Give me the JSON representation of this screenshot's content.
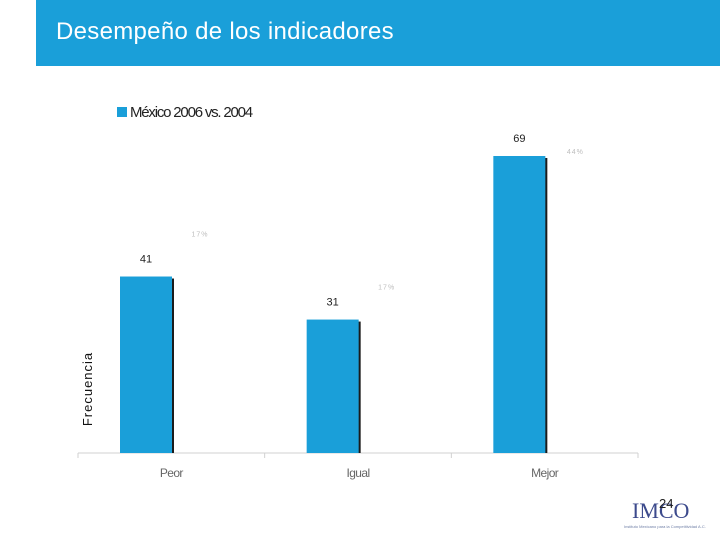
{
  "header": {
    "title": "Desempeño de los indicadores",
    "background_color": "#1a9fd9"
  },
  "chart_data": {
    "type": "bar",
    "categories": [
      "Peor",
      "Igual",
      "Mejor"
    ],
    "series": [
      {
        "name": "México 2006 vs. 2004",
        "values": [
          41,
          31,
          69
        ],
        "color": "#1a9fd9"
      }
    ],
    "faint_labels": [
      "17%",
      "17%",
      "44%"
    ],
    "title": "",
    "xlabel": "",
    "ylabel": "Frecuencia",
    "ylim": [
      0,
      69
    ],
    "grid": false,
    "legend_position": "top-center"
  },
  "footer": {
    "page_number": "24",
    "logo_text": "IMCO",
    "logo_tagline": "Instituto Mexicano para la Competitividad A.C."
  }
}
